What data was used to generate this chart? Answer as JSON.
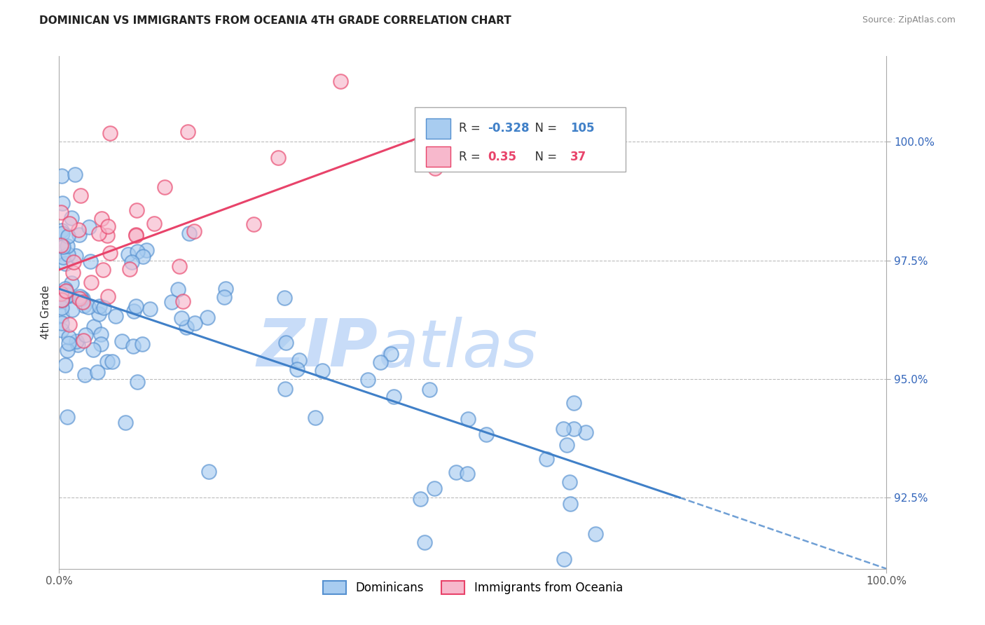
{
  "title": "DOMINICAN VS IMMIGRANTS FROM OCEANIA 4TH GRADE CORRELATION CHART",
  "source_text": "Source: ZipAtlas.com",
  "ylabel": "4th Grade",
  "xlim": [
    0.0,
    100.0
  ],
  "ylim": [
    91.0,
    101.8
  ],
  "yticks": [
    92.5,
    95.0,
    97.5,
    100.0
  ],
  "ytick_labels": [
    "92.5%",
    "95.0%",
    "97.5%",
    "100.0%"
  ],
  "xtick_labels": [
    "0.0%",
    "100.0%"
  ],
  "blue_R": -0.328,
  "blue_N": 105,
  "pink_R": 0.35,
  "pink_N": 37,
  "blue_fill": "#A8CCF0",
  "pink_fill": "#F7B8CC",
  "blue_edge": "#5590D0",
  "pink_edge": "#E8436A",
  "blue_line": "#4080C8",
  "pink_line": "#E8436A",
  "watermark_zip_color": "#C8DCF8",
  "watermark_atlas_color": "#C8DCF8",
  "legend_blue_label": "Dominicans",
  "legend_pink_label": "Immigrants from Oceania",
  "blue_line_x0": 0.0,
  "blue_line_y0": 96.9,
  "blue_line_x1": 75.0,
  "blue_line_y1": 92.5,
  "blue_dash_x0": 75.0,
  "blue_dash_y0": 92.5,
  "blue_dash_x1": 100.0,
  "blue_dash_y1": 91.0,
  "pink_line_x0": 0.0,
  "pink_line_y0": 97.3,
  "pink_line_x1": 50.0,
  "pink_line_y1": 100.5,
  "title_fontsize": 11,
  "source_fontsize": 9,
  "axis_label_fontsize": 11,
  "tick_fontsize": 11,
  "legend_fontsize": 12
}
